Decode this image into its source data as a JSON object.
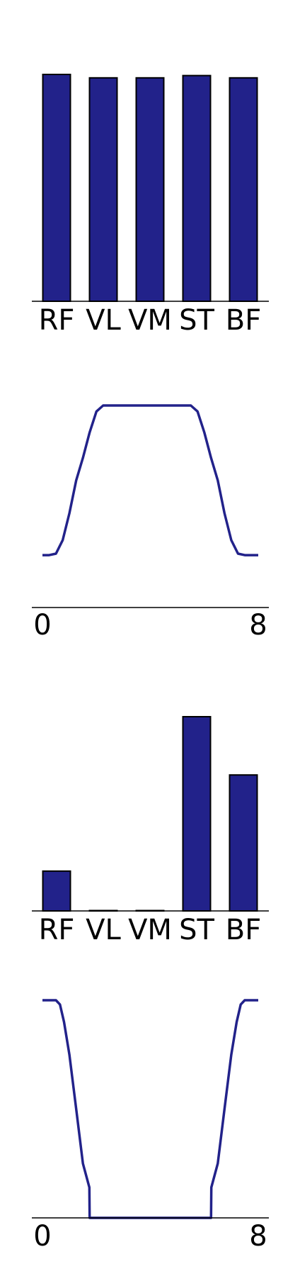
{
  "colors": {
    "mark": "#22228a",
    "edge": "#000000",
    "axis": "#000000"
  },
  "chart_data": [
    {
      "type": "bar",
      "categories": [
        "RF",
        "VL",
        "VM",
        "ST",
        "BF"
      ],
      "values": [
        1.0,
        0.985,
        0.985,
        0.995,
        0.985
      ],
      "ylim": [
        0,
        1.0
      ]
    },
    {
      "type": "line",
      "x": [
        0,
        0.25,
        0.5,
        0.75,
        1.0,
        1.25,
        1.5,
        1.75,
        2.0,
        2.25,
        2.5,
        2.75,
        3.0,
        3.5,
        4.0,
        4.5,
        5.0,
        5.25,
        5.5,
        5.75,
        6.0,
        6.25,
        6.5,
        6.75,
        7.0,
        7.25,
        7.5,
        7.75,
        8.0
      ],
      "y": [
        0,
        0,
        0.01,
        0.1,
        0.28,
        0.5,
        0.65,
        0.82,
        0.96,
        1.0,
        1.0,
        1.0,
        1.0,
        1.0,
        1.0,
        1.0,
        1.0,
        1.0,
        1.0,
        0.96,
        0.82,
        0.65,
        0.5,
        0.28,
        0.1,
        0.01,
        0,
        0,
        0
      ],
      "ylim": [
        -0.35,
        1.0
      ],
      "xticks": [
        "0",
        "8"
      ]
    },
    {
      "type": "bar",
      "categories": [
        "RF",
        "VL",
        "VM",
        "ST",
        "BF"
      ],
      "values": [
        0.205,
        0.002,
        0.002,
        1.0,
        0.7
      ],
      "ylim": [
        0,
        1.0
      ]
    },
    {
      "type": "line",
      "x": [
        0,
        0.5,
        0.65,
        0.8,
        1.0,
        1.25,
        1.5,
        1.74,
        1.75,
        2.25,
        4.0,
        5.75,
        6.25,
        6.26,
        6.5,
        6.75,
        7.0,
        7.2,
        7.35,
        7.5,
        8.0
      ],
      "y": [
        1.0,
        1.0,
        0.98,
        0.9,
        0.75,
        0.5,
        0.25,
        0.14,
        0,
        0,
        0,
        0,
        0,
        0.14,
        0.25,
        0.5,
        0.75,
        0.9,
        0.98,
        1.0,
        1.0
      ],
      "ylim": [
        0,
        1.0
      ],
      "xticks": [
        "0",
        "8"
      ]
    }
  ]
}
